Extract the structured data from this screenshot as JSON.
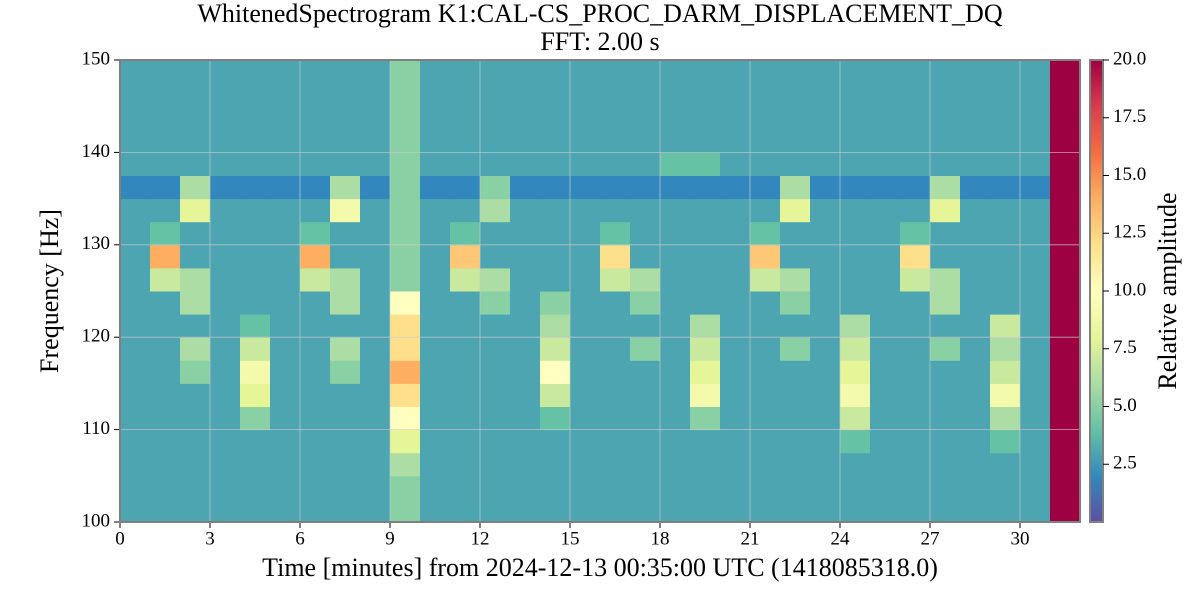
{
  "chart_data": {
    "type": "heatmap",
    "title": "WhitenedSpectrogram K1:CAL-CS_PROC_DARM_DISPLACEMENT_DQ",
    "subtitle": "FFT: 2.00 s",
    "xlabel": "Time [minutes] from 2024-12-13 00:35:00 UTC (1418085318.0)",
    "ylabel": "Frequency [Hz]",
    "colorbar_label": "Relative amplitude",
    "xlim": [
      0,
      32
    ],
    "ylim": [
      100,
      150
    ],
    "xticks": [
      0,
      3,
      6,
      9,
      12,
      15,
      18,
      21,
      24,
      27,
      30
    ],
    "yticks": [
      100,
      110,
      120,
      130,
      140,
      150
    ],
    "zlim": [
      0,
      20
    ],
    "zticks": [
      2.5,
      {
        "value": 5,
        "label": "5.0"
      },
      7.5,
      {
        "value": 10,
        "label": "10.0"
      },
      12.5,
      {
        "value": 15,
        "label": "15.0"
      },
      17.5,
      {
        "value": 20,
        "label": "20.0"
      }
    ],
    "colors": [
      "#5e4fa2",
      "#3288bd",
      "#66c2a5",
      "#abdda4",
      "#e6f598",
      "#ffffbf",
      "#fee08b",
      "#fdae61",
      "#f46d43",
      "#d53e4f",
      "#9e0142"
    ],
    "grid": true,
    "x": [
      0,
      1,
      2,
      3,
      4,
      5,
      6,
      7,
      8,
      9,
      10,
      11,
      12,
      13,
      14,
      15,
      16,
      17,
      18,
      19,
      20,
      21,
      22,
      23,
      24,
      25,
      26,
      27,
      28,
      29,
      30,
      31,
      32
    ],
    "y": [
      100,
      102.5,
      105,
      107.5,
      110,
      112.5,
      115,
      117.5,
      120,
      122.5,
      125,
      127.5,
      130,
      132.5,
      135,
      137.5,
      140,
      142.5,
      145,
      147.5,
      150
    ],
    "z": [
      [
        3,
        3,
        3,
        3,
        3,
        3,
        3,
        3,
        3,
        5,
        3,
        3,
        3,
        3,
        3,
        3,
        3,
        3,
        3,
        3,
        3,
        3,
        3,
        3,
        3,
        3,
        3,
        3,
        3,
        3,
        3,
        20
      ],
      [
        3,
        3,
        3,
        3,
        3,
        3,
        3,
        3,
        3,
        5,
        3,
        3,
        3,
        3,
        3,
        3,
        3,
        3,
        3,
        3,
        3,
        3,
        3,
        3,
        3,
        3,
        3,
        3,
        3,
        3,
        3,
        20
      ],
      [
        3,
        3,
        3,
        3,
        3,
        3,
        3,
        3,
        3,
        6,
        3,
        3,
        3,
        3,
        3,
        3,
        3,
        3,
        3,
        3,
        3,
        3,
        3,
        3,
        3,
        3,
        3,
        3,
        3,
        3,
        3,
        20
      ],
      [
        3,
        3,
        3,
        3,
        3,
        3,
        3,
        3,
        3,
        8,
        3,
        3,
        3,
        3,
        3,
        3,
        3,
        3,
        3,
        3,
        3,
        3,
        3,
        3,
        4,
        3,
        3,
        3,
        3,
        4,
        3,
        20
      ],
      [
        3,
        3,
        3,
        3,
        5,
        3,
        3,
        3,
        3,
        10,
        3,
        3,
        3,
        3,
        4,
        3,
        3,
        3,
        3,
        5,
        3,
        3,
        3,
        3,
        7,
        3,
        3,
        3,
        3,
        6,
        3,
        20
      ],
      [
        3,
        3,
        3,
        3,
        8,
        3,
        3,
        3,
        3,
        12,
        3,
        3,
        3,
        3,
        7,
        3,
        3,
        3,
        3,
        9,
        3,
        3,
        3,
        3,
        9,
        3,
        3,
        3,
        3,
        9,
        3,
        20
      ],
      [
        3,
        3,
        5,
        3,
        9,
        3,
        3,
        5,
        3,
        14,
        3,
        3,
        3,
        3,
        10,
        3,
        3,
        3,
        3,
        8,
        3,
        3,
        3,
        3,
        8,
        3,
        3,
        3,
        3,
        7,
        3,
        20
      ],
      [
        3,
        3,
        6,
        3,
        7,
        3,
        3,
        6,
        3,
        12,
        3,
        3,
        3,
        3,
        7,
        3,
        3,
        5,
        3,
        7,
        3,
        3,
        5,
        3,
        7,
        3,
        3,
        5,
        3,
        6,
        3,
        20
      ],
      [
        3,
        3,
        3,
        3,
        4,
        3,
        3,
        3,
        3,
        12,
        3,
        3,
        3,
        3,
        6,
        3,
        3,
        3,
        3,
        6,
        3,
        3,
        3,
        3,
        6,
        3,
        3,
        3,
        3,
        7,
        3,
        20
      ],
      [
        3,
        3,
        6,
        3,
        3,
        3,
        3,
        6,
        3,
        10,
        3,
        3,
        5,
        3,
        5,
        3,
        3,
        5,
        3,
        3,
        3,
        3,
        5,
        3,
        3,
        3,
        3,
        6,
        3,
        3,
        3,
        20
      ],
      [
        3,
        7,
        6,
        3,
        3,
        3,
        7,
        6,
        3,
        5,
        3,
        7,
        6,
        3,
        3,
        3,
        7,
        6,
        3,
        3,
        3,
        7,
        6,
        3,
        3,
        3,
        7,
        6,
        3,
        3,
        3,
        20
      ],
      [
        3,
        14,
        3,
        3,
        3,
        3,
        14,
        3,
        3,
        5,
        3,
        13,
        3,
        3,
        3,
        3,
        12,
        3,
        3,
        3,
        3,
        13,
        3,
        3,
        3,
        3,
        12,
        3,
        3,
        3,
        3,
        20
      ],
      [
        3,
        4,
        3,
        3,
        3,
        3,
        4,
        3,
        3,
        5,
        3,
        4,
        3,
        3,
        3,
        3,
        4,
        3,
        3,
        3,
        3,
        4,
        3,
        3,
        3,
        3,
        4,
        3,
        3,
        3,
        3,
        20
      ],
      [
        3,
        3,
        8,
        3,
        3,
        3,
        3,
        9,
        3,
        5,
        3,
        3,
        6,
        3,
        3,
        3,
        3,
        3,
        3,
        3,
        3,
        3,
        8,
        3,
        3,
        3,
        3,
        8,
        3,
        3,
        3,
        20
      ],
      [
        2,
        2,
        6,
        2,
        2,
        2,
        2,
        6,
        2,
        5,
        2,
        2,
        5,
        2,
        2,
        2,
        2,
        2,
        2,
        2,
        2,
        2,
        6,
        2,
        2,
        2,
        2,
        6,
        2,
        2,
        2,
        20
      ],
      [
        3,
        3,
        3,
        3,
        3,
        3,
        3,
        3,
        3,
        5,
        3,
        3,
        3,
        3,
        3,
        3,
        3,
        3,
        4,
        4,
        3,
        3,
        3,
        3,
        3,
        3,
        3,
        3,
        3,
        3,
        3,
        20
      ],
      [
        3,
        3,
        3,
        3,
        3,
        3,
        3,
        3,
        3,
        5,
        3,
        3,
        3,
        3,
        3,
        3,
        3,
        3,
        3,
        3,
        3,
        3,
        3,
        3,
        3,
        3,
        3,
        3,
        3,
        3,
        3,
        20
      ],
      [
        3,
        3,
        3,
        3,
        3,
        3,
        3,
        3,
        3,
        5,
        3,
        3,
        3,
        3,
        3,
        3,
        3,
        3,
        3,
        3,
        3,
        3,
        3,
        3,
        3,
        3,
        3,
        3,
        3,
        3,
        3,
        20
      ],
      [
        3,
        3,
        3,
        3,
        3,
        3,
        3,
        3,
        3,
        5,
        3,
        3,
        3,
        3,
        3,
        3,
        3,
        3,
        3,
        3,
        3,
        3,
        3,
        3,
        3,
        3,
        3,
        3,
        3,
        3,
        3,
        20
      ],
      [
        3,
        3,
        3,
        3,
        3,
        3,
        3,
        3,
        3,
        5,
        3,
        3,
        3,
        3,
        3,
        3,
        3,
        3,
        3,
        3,
        3,
        3,
        3,
        3,
        3,
        3,
        3,
        3,
        3,
        3,
        3,
        20
      ]
    ]
  }
}
